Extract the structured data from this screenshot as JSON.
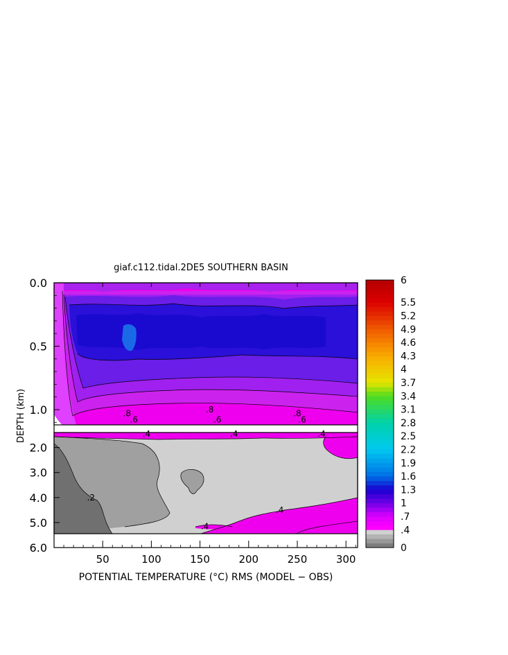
{
  "chart_data": {
    "type": "heatmap",
    "title": "giaf.c112.tidal.2DE5 SOUTHERN BASIN",
    "xlabel": "POTENTIAL TEMPERATURE (°C) RMS (MODEL − OBS)",
    "ylabel": "DEPTH (km)",
    "xlim": [
      0,
      312
    ],
    "x_ticks": [
      "50",
      "100",
      "150",
      "200",
      "250",
      "300"
    ],
    "x_tick_values": [
      50,
      100,
      150,
      200,
      250,
      300
    ],
    "y_ticks_upper": [
      "0.0",
      "0.5",
      "1.0"
    ],
    "y_ticks_upper_values": [
      0.0,
      0.5,
      1.0
    ],
    "y_ticks_lower": [
      "2.0",
      "3.0",
      "4.0",
      "5.0",
      "6.0"
    ],
    "y_ticks_lower_values": [
      2.0,
      3.0,
      4.0,
      5.0,
      6.0
    ],
    "upper_ylim": [
      0.0,
      1.12
    ],
    "lower_ylim": [
      1.4,
      6.0
    ],
    "colorbar": {
      "range": [
        0,
        6
      ],
      "labels": [
        "6",
        "5.5",
        "5.2",
        "4.9",
        "4.6",
        "4.3",
        "4",
        "3.7",
        "3.4",
        "3.1",
        "2.8",
        "2.5",
        "2.2",
        "1.9",
        "1.6",
        "1.3",
        "1",
        ".7",
        ".4",
        "0"
      ],
      "label_values": [
        6,
        5.5,
        5.2,
        4.9,
        4.6,
        4.3,
        4,
        3.7,
        3.4,
        3.1,
        2.8,
        2.5,
        2.2,
        1.9,
        1.6,
        1.3,
        1,
        0.7,
        0.4,
        0
      ]
    },
    "contour_labels_upper": [
      {
        "text": ".8",
        "x": 75,
        "y": 1.03
      },
      {
        "text": ".8",
        "x": 160,
        "y": 1.0
      },
      {
        "text": ".8",
        "x": 250,
        "y": 1.03
      },
      {
        "text": ".6",
        "x": 82,
        "y": 1.08
      },
      {
        "text": ".6",
        "x": 168,
        "y": 1.08
      },
      {
        "text": ".6",
        "x": 255,
        "y": 1.08
      }
    ],
    "contour_labels_lower": [
      {
        "text": ".4",
        "x": 95,
        "y": 1.45
      },
      {
        "text": ".4",
        "x": 185,
        "y": 1.45
      },
      {
        "text": ".4",
        "x": 275,
        "y": 1.45
      },
      {
        "text": ".4",
        "x": 232,
        "y": 4.5
      },
      {
        "text": ".4",
        "x": 155,
        "y": 5.15
      },
      {
        "text": ".2",
        "x": 38,
        "y": 4.0
      }
    ]
  }
}
